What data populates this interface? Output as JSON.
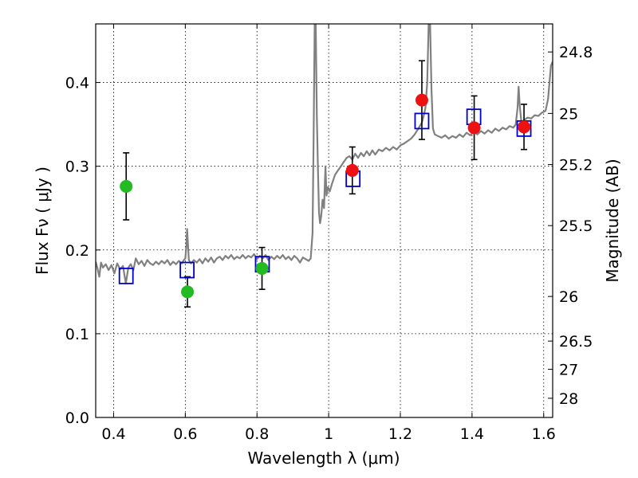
{
  "chart_data": {
    "type": "scatter",
    "title": "",
    "xlabel": "Wavelength  λ (μm)",
    "ylabel": "Flux  Fν  ( μJy )",
    "y2label": "Magnitude (AB)",
    "xlim": [
      0.35,
      1.625
    ],
    "ylim": [
      0.0,
      0.47
    ],
    "grid": true,
    "x_ticks": [
      0.4,
      0.6,
      0.8,
      1.0,
      1.2,
      1.4,
      1.6
    ],
    "x_tick_labels": [
      "0.4",
      "0.6",
      "0.8",
      "1",
      "1.2",
      "1.4",
      "1.6"
    ],
    "y_ticks": [
      0.0,
      0.1,
      0.2,
      0.3,
      0.4
    ],
    "y_tick_labels": [
      "0.0",
      "0.1",
      "0.2",
      "0.3",
      "0.4"
    ],
    "y2_ticks": [
      {
        "label": "24.8",
        "flux": 0.4365
      },
      {
        "label": "25",
        "flux": 0.3631
      },
      {
        "label": "25.2",
        "flux": 0.302
      },
      {
        "label": "25.5",
        "flux": 0.2291
      },
      {
        "label": "26",
        "flux": 0.1445
      },
      {
        "label": "26.5",
        "flux": 0.0912
      },
      {
        "label": "27",
        "flux": 0.0575
      },
      {
        "label": "28",
        "flux": 0.0229
      }
    ],
    "series": [
      {
        "kind": "spectrum",
        "color": "#808080",
        "points": [
          [
            0.35,
            0.186
          ],
          [
            0.355,
            0.178
          ],
          [
            0.36,
            0.168
          ],
          [
            0.365,
            0.185
          ],
          [
            0.37,
            0.179
          ],
          [
            0.378,
            0.183
          ],
          [
            0.386,
            0.176
          ],
          [
            0.394,
            0.182
          ],
          [
            0.402,
            0.172
          ],
          [
            0.41,
            0.184
          ],
          [
            0.418,
            0.177
          ],
          [
            0.426,
            0.181
          ],
          [
            0.434,
            0.16
          ],
          [
            0.441,
            0.179
          ],
          [
            0.448,
            0.183
          ],
          [
            0.455,
            0.176
          ],
          [
            0.462,
            0.19
          ],
          [
            0.47,
            0.183
          ],
          [
            0.478,
            0.187
          ],
          [
            0.486,
            0.181
          ],
          [
            0.494,
            0.188
          ],
          [
            0.502,
            0.184
          ],
          [
            0.51,
            0.182
          ],
          [
            0.518,
            0.186
          ],
          [
            0.526,
            0.183
          ],
          [
            0.534,
            0.187
          ],
          [
            0.542,
            0.184
          ],
          [
            0.55,
            0.188
          ],
          [
            0.558,
            0.182
          ],
          [
            0.566,
            0.186
          ],
          [
            0.574,
            0.183
          ],
          [
            0.582,
            0.187
          ],
          [
            0.59,
            0.184
          ],
          [
            0.596,
            0.188
          ],
          [
            0.6,
            0.19
          ],
          [
            0.603,
            0.205
          ],
          [
            0.605,
            0.225
          ],
          [
            0.607,
            0.21
          ],
          [
            0.61,
            0.188
          ],
          [
            0.616,
            0.184
          ],
          [
            0.624,
            0.188
          ],
          [
            0.632,
            0.185
          ],
          [
            0.64,
            0.189
          ],
          [
            0.648,
            0.184
          ],
          [
            0.656,
            0.19
          ],
          [
            0.664,
            0.186
          ],
          [
            0.672,
            0.191
          ],
          [
            0.68,
            0.185
          ],
          [
            0.688,
            0.19
          ],
          [
            0.696,
            0.192
          ],
          [
            0.704,
            0.188
          ],
          [
            0.712,
            0.193
          ],
          [
            0.72,
            0.19
          ],
          [
            0.728,
            0.194
          ],
          [
            0.736,
            0.189
          ],
          [
            0.744,
            0.192
          ],
          [
            0.752,
            0.19
          ],
          [
            0.76,
            0.194
          ],
          [
            0.768,
            0.19
          ],
          [
            0.776,
            0.193
          ],
          [
            0.784,
            0.191
          ],
          [
            0.792,
            0.195
          ],
          [
            0.8,
            0.189
          ],
          [
            0.808,
            0.193
          ],
          [
            0.816,
            0.19
          ],
          [
            0.824,
            0.194
          ],
          [
            0.832,
            0.188
          ],
          [
            0.84,
            0.192
          ],
          [
            0.848,
            0.189
          ],
          [
            0.856,
            0.193
          ],
          [
            0.864,
            0.19
          ],
          [
            0.872,
            0.194
          ],
          [
            0.88,
            0.189
          ],
          [
            0.888,
            0.192
          ],
          [
            0.896,
            0.188
          ],
          [
            0.904,
            0.193
          ],
          [
            0.912,
            0.19
          ],
          [
            0.92,
            0.185
          ],
          [
            0.928,
            0.191
          ],
          [
            0.936,
            0.189
          ],
          [
            0.944,
            0.187
          ],
          [
            0.95,
            0.19
          ],
          [
            0.955,
            0.22
          ],
          [
            0.958,
            0.33
          ],
          [
            0.961,
            0.47
          ],
          [
            0.964,
            0.47
          ],
          [
            0.967,
            0.36
          ],
          [
            0.97,
            0.3
          ],
          [
            0.973,
            0.245
          ],
          [
            0.976,
            0.232
          ],
          [
            0.979,
            0.24
          ],
          [
            0.983,
            0.26
          ],
          [
            0.987,
            0.25
          ],
          [
            0.991,
            0.3
          ],
          [
            0.994,
            0.265
          ],
          [
            0.998,
            0.275
          ],
          [
            1.003,
            0.27
          ],
          [
            1.01,
            0.28
          ],
          [
            1.018,
            0.29
          ],
          [
            1.026,
            0.295
          ],
          [
            1.034,
            0.3
          ],
          [
            1.042,
            0.305
          ],
          [
            1.05,
            0.31
          ],
          [
            1.058,
            0.312
          ],
          [
            1.066,
            0.308
          ],
          [
            1.074,
            0.315
          ],
          [
            1.082,
            0.31
          ],
          [
            1.09,
            0.316
          ],
          [
            1.098,
            0.312
          ],
          [
            1.106,
            0.318
          ],
          [
            1.114,
            0.313
          ],
          [
            1.122,
            0.319
          ],
          [
            1.13,
            0.314
          ],
          [
            1.14,
            0.32
          ],
          [
            1.15,
            0.318
          ],
          [
            1.16,
            0.322
          ],
          [
            1.17,
            0.319
          ],
          [
            1.18,
            0.323
          ],
          [
            1.19,
            0.32
          ],
          [
            1.2,
            0.325
          ],
          [
            1.21,
            0.327
          ],
          [
            1.22,
            0.33
          ],
          [
            1.23,
            0.333
          ],
          [
            1.24,
            0.338
          ],
          [
            1.25,
            0.345
          ],
          [
            1.26,
            0.352
          ],
          [
            1.265,
            0.36
          ],
          [
            1.27,
            0.37
          ],
          [
            1.275,
            0.4
          ],
          [
            1.279,
            0.47
          ],
          [
            1.283,
            0.47
          ],
          [
            1.287,
            0.39
          ],
          [
            1.291,
            0.345
          ],
          [
            1.296,
            0.338
          ],
          [
            1.305,
            0.336
          ],
          [
            1.315,
            0.334
          ],
          [
            1.325,
            0.337
          ],
          [
            1.335,
            0.333
          ],
          [
            1.345,
            0.336
          ],
          [
            1.355,
            0.334
          ],
          [
            1.365,
            0.338
          ],
          [
            1.375,
            0.335
          ],
          [
            1.385,
            0.34
          ],
          [
            1.395,
            0.337
          ],
          [
            1.405,
            0.341
          ],
          [
            1.415,
            0.338
          ],
          [
            1.425,
            0.342
          ],
          [
            1.435,
            0.339
          ],
          [
            1.445,
            0.343
          ],
          [
            1.455,
            0.34
          ],
          [
            1.465,
            0.345
          ],
          [
            1.475,
            0.342
          ],
          [
            1.485,
            0.346
          ],
          [
            1.495,
            0.344
          ],
          [
            1.505,
            0.348
          ],
          [
            1.515,
            0.346
          ],
          [
            1.522,
            0.35
          ],
          [
            1.527,
            0.37
          ],
          [
            1.53,
            0.395
          ],
          [
            1.533,
            0.372
          ],
          [
            1.538,
            0.352
          ],
          [
            1.545,
            0.355
          ],
          [
            1.555,
            0.358
          ],
          [
            1.565,
            0.357
          ],
          [
            1.575,
            0.361
          ],
          [
            1.585,
            0.36
          ],
          [
            1.595,
            0.364
          ],
          [
            1.605,
            0.366
          ],
          [
            1.612,
            0.38
          ],
          [
            1.62,
            0.42
          ],
          [
            1.625,
            0.425
          ]
        ]
      },
      {
        "kind": "model_photometry",
        "marker": "open-square",
        "color": "#0000cc",
        "points": [
          {
            "x": 0.435,
            "y": 0.169
          },
          {
            "x": 0.605,
            "y": 0.176
          },
          {
            "x": 0.815,
            "y": 0.183
          },
          {
            "x": 1.068,
            "y": 0.285
          },
          {
            "x": 1.26,
            "y": 0.354
          },
          {
            "x": 1.405,
            "y": 0.359
          },
          {
            "x": 1.545,
            "y": 0.345
          }
        ]
      },
      {
        "kind": "observed_optical",
        "marker": "filled-circle",
        "color": "#22bb22",
        "points": [
          {
            "x": 0.435,
            "y": 0.276,
            "err": 0.04
          },
          {
            "x": 0.606,
            "y": 0.15,
            "err": 0.018
          },
          {
            "x": 0.814,
            "y": 0.178,
            "err": 0.025
          }
        ]
      },
      {
        "kind": "observed_nir",
        "marker": "filled-circle",
        "color": "#ee1111",
        "points": [
          {
            "x": 1.066,
            "y": 0.295,
            "err": 0.028
          },
          {
            "x": 1.26,
            "y": 0.379,
            "err": 0.047
          },
          {
            "x": 1.406,
            "y": 0.346,
            "err": 0.038
          },
          {
            "x": 1.545,
            "y": 0.347,
            "err": 0.027
          }
        ]
      }
    ]
  }
}
